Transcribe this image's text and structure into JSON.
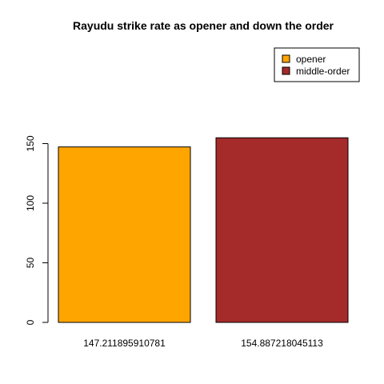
{
  "chart_data": {
    "type": "bar",
    "title": "Rayudu strike rate as opener and down the order",
    "xlabel": "",
    "ylabel": "",
    "categories": [
      "147.211895910781",
      "154.887218045113"
    ],
    "values": [
      147.211895910781,
      154.887218045113
    ],
    "colors": [
      "#FFA500",
      "#A52A2A"
    ],
    "ylim": [
      0,
      155
    ],
    "yticks": [
      0,
      50,
      100,
      150
    ],
    "grid": false,
    "legend": {
      "position": "top-right",
      "entries": [
        {
          "label": "opener",
          "color": "#FFA500"
        },
        {
          "label": "middle-order",
          "color": "#A52A2A"
        }
      ]
    }
  }
}
